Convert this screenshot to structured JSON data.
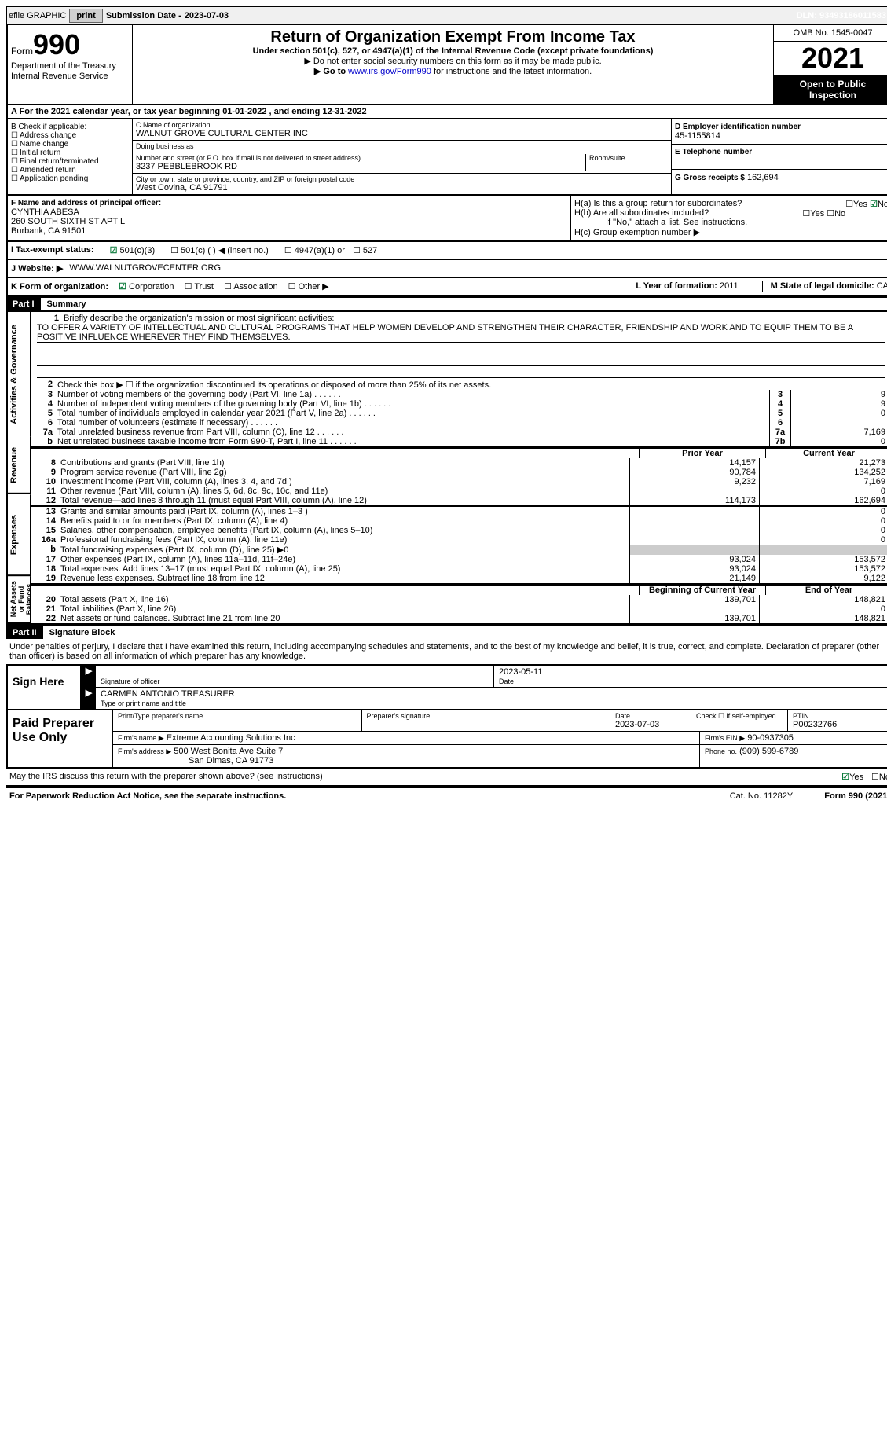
{
  "topbar": {
    "efile": "efile GRAPHIC",
    "print": "print",
    "subdate_label": "Submission Date -",
    "subdate": "2023-07-03",
    "dln_label": "DLN:",
    "dln": "93493186011583"
  },
  "header": {
    "form_label": "Form",
    "form_no": "990",
    "dept": "Department of the Treasury",
    "irs": "Internal Revenue Service",
    "title": "Return of Organization Exempt From Income Tax",
    "sub": "Under section 501(c), 527, or 4947(a)(1) of the Internal Revenue Code (except private foundations)",
    "note1": "▶ Do not enter social security numbers on this form as it may be made public.",
    "note2_pre": "▶ Go to ",
    "note2_link": "www.irs.gov/Form990",
    "note2_post": " for instructions and the latest information.",
    "omb": "OMB No. 1545-0047",
    "year": "2021",
    "open": "Open to Public Inspection"
  },
  "row_a": "A For the 2021 calendar year, or tax year beginning 01-01-2022   , and ending 12-31-2022",
  "col_b": {
    "head": "B Check if applicable:",
    "items": [
      "Address change",
      "Name change",
      "Initial return",
      "Final return/terminated",
      "Amended return",
      "Application pending"
    ]
  },
  "col_c": {
    "name_lbl": "C Name of organization",
    "name": "WALNUT GROVE CULTURAL CENTER INC",
    "dba_lbl": "Doing business as",
    "dba": "",
    "addr_lbl": "Number and street (or P.O. box if mail is not delivered to street address)",
    "room_lbl": "Room/suite",
    "addr": "3237 PEBBLEBROOK RD",
    "city_lbl": "City or town, state or province, country, and ZIP or foreign postal code",
    "city": "West Covina, CA  91791"
  },
  "col_d": {
    "ein_lbl": "D Employer identification number",
    "ein": "45-1155814",
    "tel_lbl": "E Telephone number",
    "tel": "",
    "gross_lbl": "G Gross receipts $",
    "gross": "162,694"
  },
  "col_f": {
    "lbl": "F Name and address of principal officer:",
    "name": "CYNTHIA ABESA",
    "addr1": "260 SOUTH SIXTH ST APT L",
    "addr2": "Burbank, CA  91501"
  },
  "col_h": {
    "ha": "H(a)  Is this a group return for subordinates?",
    "hb": "H(b)  Are all subordinates included?",
    "hb_note": "If \"No,\" attach a list. See instructions.",
    "hc": "H(c)  Group exemption number ▶"
  },
  "row_i": {
    "lbl": "I  Tax-exempt status:",
    "opts": [
      "501(c)(3)",
      "501(c) (  ) ◀ (insert no.)",
      "4947(a)(1) or",
      "527"
    ]
  },
  "row_j": {
    "lbl": "J  Website: ▶",
    "val": "WWW.WALNUTGROVECENTER.ORG"
  },
  "row_k": {
    "lbl": "K Form of organization:",
    "opts": [
      "Corporation",
      "Trust",
      "Association",
      "Other ▶"
    ],
    "l_lbl": "L Year of formation:",
    "l_val": "2011",
    "m_lbl": "M State of legal domicile:",
    "m_val": "CA"
  },
  "part1": {
    "head": "Part I",
    "title": "Summary",
    "line1_lbl": "Briefly describe the organization's mission or most significant activities:",
    "mission": "TO OFFER A VARIETY OF INTELLECTUAL AND CULTURAL PROGRAMS THAT HELP WOMEN DEVELOP AND STRENGTHEN THEIR CHARACTER, FRIENDSHIP AND WORK AND TO EQUIP THEM TO BE A POSITIVE INFLUENCE WHEREVER THEY FIND THEMSELVES.",
    "line2": "Check this box ▶ ☐ if the organization discontinued its operations or disposed of more than 25% of its net assets.",
    "lines_single": [
      {
        "n": "3",
        "txt": "Number of voting members of the governing body (Part VI, line 1a)",
        "box": "3",
        "val": "9"
      },
      {
        "n": "4",
        "txt": "Number of independent voting members of the governing body (Part VI, line 1b)",
        "box": "4",
        "val": "9"
      },
      {
        "n": "5",
        "txt": "Total number of individuals employed in calendar year 2021 (Part V, line 2a)",
        "box": "5",
        "val": "0"
      },
      {
        "n": "6",
        "txt": "Total number of volunteers (estimate if necessary)",
        "box": "6",
        "val": ""
      },
      {
        "n": "7a",
        "txt": "Total unrelated business revenue from Part VIII, column (C), line 12",
        "box": "7a",
        "val": "7,169"
      },
      {
        "n": "b",
        "txt": "Net unrelated business taxable income from Form 990-T, Part I, line 11",
        "box": "7b",
        "val": "0"
      }
    ],
    "prior_head": "Prior Year",
    "current_head": "Current Year",
    "revenue": [
      {
        "n": "8",
        "txt": "Contributions and grants (Part VIII, line 1h)",
        "v1": "14,157",
        "v2": "21,273"
      },
      {
        "n": "9",
        "txt": "Program service revenue (Part VIII, line 2g)",
        "v1": "90,784",
        "v2": "134,252"
      },
      {
        "n": "10",
        "txt": "Investment income (Part VIII, column (A), lines 3, 4, and 7d )",
        "v1": "9,232",
        "v2": "7,169"
      },
      {
        "n": "11",
        "txt": "Other revenue (Part VIII, column (A), lines 5, 6d, 8c, 9c, 10c, and 11e)",
        "v1": "",
        "v2": "0"
      },
      {
        "n": "12",
        "txt": "Total revenue—add lines 8 through 11 (must equal Part VIII, column (A), line 12)",
        "v1": "114,173",
        "v2": "162,694"
      }
    ],
    "expenses": [
      {
        "n": "13",
        "txt": "Grants and similar amounts paid (Part IX, column (A), lines 1–3 )",
        "v1": "",
        "v2": "0"
      },
      {
        "n": "14",
        "txt": "Benefits paid to or for members (Part IX, column (A), line 4)",
        "v1": "",
        "v2": "0"
      },
      {
        "n": "15",
        "txt": "Salaries, other compensation, employee benefits (Part IX, column (A), lines 5–10)",
        "v1": "",
        "v2": "0"
      },
      {
        "n": "16a",
        "txt": "Professional fundraising fees (Part IX, column (A), line 11e)",
        "v1": "",
        "v2": "0"
      },
      {
        "n": "b",
        "txt": "Total fundraising expenses (Part IX, column (D), line 25) ▶0",
        "v1": "shaded",
        "v2": "shaded"
      },
      {
        "n": "17",
        "txt": "Other expenses (Part IX, column (A), lines 11a–11d, 11f–24e)",
        "v1": "93,024",
        "v2": "153,572"
      },
      {
        "n": "18",
        "txt": "Total expenses. Add lines 13–17 (must equal Part IX, column (A), line 25)",
        "v1": "93,024",
        "v2": "153,572"
      },
      {
        "n": "19",
        "txt": "Revenue less expenses. Subtract line 18 from line 12",
        "v1": "21,149",
        "v2": "9,122"
      }
    ],
    "boy_head": "Beginning of Current Year",
    "eoy_head": "End of Year",
    "netassets": [
      {
        "n": "20",
        "txt": "Total assets (Part X, line 16)",
        "v1": "139,701",
        "v2": "148,821"
      },
      {
        "n": "21",
        "txt": "Total liabilities (Part X, line 26)",
        "v1": "",
        "v2": "0"
      },
      {
        "n": "22",
        "txt": "Net assets or fund balances. Subtract line 21 from line 20",
        "v1": "139,701",
        "v2": "148,821"
      }
    ],
    "vtabs": [
      "Activities & Governance",
      "Revenue",
      "Expenses",
      "Net Assets or Fund Balances"
    ]
  },
  "part2": {
    "head": "Part II",
    "title": "Signature Block",
    "intro": "Under penalties of perjury, I declare that I have examined this return, including accompanying schedules and statements, and to the best of my knowledge and belief, it is true, correct, and complete. Declaration of preparer (other than officer) is based on all information of which preparer has any knowledge."
  },
  "sign": {
    "label": "Sign Here",
    "sig_of": "Signature of officer",
    "date": "2023-05-11",
    "date_lbl": "Date",
    "name": "CARMEN ANTONIO  TREASURER",
    "name_lbl": "Type or print name and title"
  },
  "prep": {
    "label": "Paid Preparer Use Only",
    "pname_lbl": "Print/Type preparer's name",
    "psig_lbl": "Preparer's signature",
    "pdate_lbl": "Date",
    "pdate": "2023-07-03",
    "check_lbl": "Check ☐ if self-employed",
    "ptin_lbl": "PTIN",
    "ptin": "P00232766",
    "firm_lbl": "Firm's name    ▶",
    "firm": "Extreme Accounting Solutions Inc",
    "fein_lbl": "Firm's EIN ▶",
    "fein": "90-0937305",
    "faddr_lbl": "Firm's address ▶",
    "faddr1": "500 West Bonita Ave Suite 7",
    "faddr2": "San Dimas, CA  91773",
    "phone_lbl": "Phone no.",
    "phone": "(909) 599-6789"
  },
  "discuss": "May the IRS discuss this return with the preparer shown above? (see instructions)",
  "footer": {
    "pra": "For Paperwork Reduction Act Notice, see the separate instructions.",
    "cat": "Cat. No. 11282Y",
    "form": "Form 990 (2021)"
  }
}
